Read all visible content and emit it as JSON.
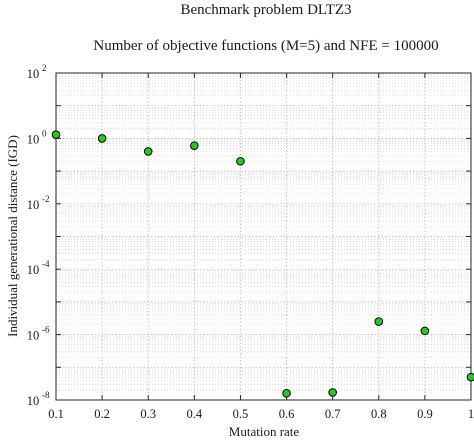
{
  "chart_data": {
    "type": "scatter",
    "title": "Benchmark problem DLTZ3",
    "subtitle": "Number of objective functions (M=5) and NFE = 100000",
    "xlabel": "Mutation rate",
    "ylabel": "Individual generational distance (IGD)",
    "x_scale": "linear",
    "y_scale": "log",
    "xlim": [
      0.1,
      1.0
    ],
    "ylim": [
      1e-08,
      100
    ],
    "xticks": [
      "0.1",
      "0.2",
      "0.3",
      "0.4",
      "0.5",
      "0.6",
      "0.7",
      "0.8",
      "0.9",
      "1"
    ],
    "xtick_values": [
      0.1,
      0.2,
      0.3,
      0.4,
      0.5,
      0.6,
      0.7,
      0.8,
      0.9,
      1.0
    ],
    "ytick_exponents": [
      "2",
      "0",
      "-2",
      "-4",
      "-6",
      "-8"
    ],
    "ytick_base": "10",
    "grid": true,
    "marker_color": "#22cc22",
    "marker_edge": "#000000",
    "points": [
      {
        "x": 0.1,
        "y": 1.3
      },
      {
        "x": 0.2,
        "y": 1.0
      },
      {
        "x": 0.3,
        "y": 0.4
      },
      {
        "x": 0.4,
        "y": 0.6
      },
      {
        "x": 0.5,
        "y": 0.2
      },
      {
        "x": 0.6,
        "y": 1.6e-08
      },
      {
        "x": 0.7,
        "y": 1.7e-08
      },
      {
        "x": 0.8,
        "y": 2.5e-06
      },
      {
        "x": 0.9,
        "y": 1.3e-06
      },
      {
        "x": 1.0,
        "y": 5e-08
      }
    ]
  }
}
